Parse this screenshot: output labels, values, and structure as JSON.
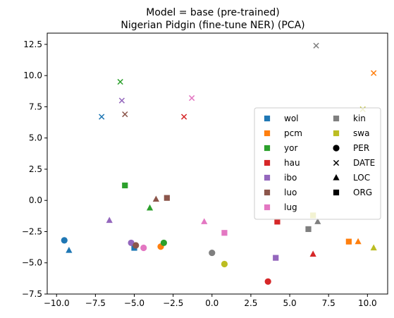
{
  "chart_data": {
    "type": "scatter",
    "title_line1": "Model = base (pre-trained)",
    "title_line2": "Nigerian Pidgin (fine-tune NER) (PCA)",
    "xlabel": "",
    "ylabel": "",
    "xlim": [
      -10.6,
      11.3
    ],
    "ylim": [
      -7.5,
      13.4
    ],
    "xticks": [
      -10.0,
      -7.5,
      -5.0,
      -2.5,
      0.0,
      2.5,
      5.0,
      7.5,
      10.0
    ],
    "yticks": [
      -7.5,
      -5.0,
      -2.5,
      0.0,
      2.5,
      5.0,
      7.5,
      10.0,
      12.5
    ],
    "xtick_labels": [
      "−10.0",
      "−7.5",
      "−5.0",
      "−2.5",
      "0.0",
      "2.5",
      "5.0",
      "7.5",
      "10.0"
    ],
    "ytick_labels": [
      "−7.5",
      "−5.0",
      "−2.5",
      "0.0",
      "2.5",
      "5.0",
      "7.5",
      "10.0",
      "12.5"
    ],
    "grid": false,
    "legend_placement": "center-right",
    "languages": [
      {
        "name": "wol",
        "color": "#1f77b4"
      },
      {
        "name": "pcm",
        "color": "#ff7f0e"
      },
      {
        "name": "yor",
        "color": "#2ca02c"
      },
      {
        "name": "hau",
        "color": "#d62728"
      },
      {
        "name": "ibo",
        "color": "#9467bd"
      },
      {
        "name": "luo",
        "color": "#8c564b"
      },
      {
        "name": "lug",
        "color": "#e377c2"
      },
      {
        "name": "kin",
        "color": "#7f7f7f"
      },
      {
        "name": "swa",
        "color": "#bcbd22"
      }
    ],
    "entity_types": [
      {
        "name": "PER",
        "marker": "circle"
      },
      {
        "name": "DATE",
        "marker": "x"
      },
      {
        "name": "LOC",
        "marker": "triangle"
      },
      {
        "name": "ORG",
        "marker": "square"
      }
    ],
    "points": [
      {
        "lang": "wol",
        "type": "DATE",
        "x": -7.1,
        "y": 6.7
      },
      {
        "lang": "wol",
        "type": "PER",
        "x": -9.5,
        "y": -3.2
      },
      {
        "lang": "wol",
        "type": "LOC",
        "x": -9.2,
        "y": -4.0
      },
      {
        "lang": "wol",
        "type": "ORG",
        "x": -5.0,
        "y": -3.8
      },
      {
        "lang": "pcm",
        "type": "DATE",
        "x": 10.4,
        "y": 10.2
      },
      {
        "lang": "pcm",
        "type": "PER",
        "x": -3.3,
        "y": -3.7
      },
      {
        "lang": "pcm",
        "type": "ORG",
        "x": 8.8,
        "y": -3.3
      },
      {
        "lang": "pcm",
        "type": "LOC",
        "x": 9.4,
        "y": -3.3
      },
      {
        "lang": "yor",
        "type": "DATE",
        "x": -5.9,
        "y": 9.5
      },
      {
        "lang": "yor",
        "type": "ORG",
        "x": -5.6,
        "y": 1.2
      },
      {
        "lang": "yor",
        "type": "LOC",
        "x": -4.0,
        "y": -0.6
      },
      {
        "lang": "yor",
        "type": "PER",
        "x": -3.1,
        "y": -3.4
      },
      {
        "lang": "hau",
        "type": "DATE",
        "x": -1.8,
        "y": 6.7
      },
      {
        "lang": "hau",
        "type": "ORG",
        "x": 4.2,
        "y": -1.7
      },
      {
        "lang": "hau",
        "type": "PER",
        "x": 3.6,
        "y": -6.5
      },
      {
        "lang": "hau",
        "type": "LOC",
        "x": 6.5,
        "y": -4.3
      },
      {
        "lang": "ibo",
        "type": "DATE",
        "x": -5.8,
        "y": 8.0
      },
      {
        "lang": "ibo",
        "type": "LOC",
        "x": -6.6,
        "y": -1.6
      },
      {
        "lang": "ibo",
        "type": "PER",
        "x": -5.2,
        "y": -3.4
      },
      {
        "lang": "ibo",
        "type": "ORG",
        "x": 4.1,
        "y": -4.6
      },
      {
        "lang": "luo",
        "type": "DATE",
        "x": -5.6,
        "y": 6.9
      },
      {
        "lang": "luo",
        "type": "LOC",
        "x": -3.6,
        "y": 0.1
      },
      {
        "lang": "luo",
        "type": "ORG",
        "x": -2.9,
        "y": 0.2
      },
      {
        "lang": "luo",
        "type": "PER",
        "x": -4.9,
        "y": -3.6
      },
      {
        "lang": "lug",
        "type": "DATE",
        "x": -1.3,
        "y": 8.2
      },
      {
        "lang": "lug",
        "type": "LOC",
        "x": -0.5,
        "y": -1.7
      },
      {
        "lang": "lug",
        "type": "ORG",
        "x": 0.8,
        "y": -2.6
      },
      {
        "lang": "lug",
        "type": "PER",
        "x": -4.4,
        "y": -3.8
      },
      {
        "lang": "kin",
        "type": "DATE",
        "x": 6.7,
        "y": 12.4
      },
      {
        "lang": "kin",
        "type": "ORG",
        "x": 6.2,
        "y": -2.3
      },
      {
        "lang": "kin",
        "type": "LOC",
        "x": 6.8,
        "y": -1.7
      },
      {
        "lang": "kin",
        "type": "PER",
        "x": 0.0,
        "y": -4.2
      },
      {
        "lang": "swa",
        "type": "DATE",
        "x": 9.7,
        "y": 7.3
      },
      {
        "lang": "swa",
        "type": "ORG",
        "x": 6.5,
        "y": -1.2
      },
      {
        "lang": "swa",
        "type": "PER",
        "x": 0.8,
        "y": -5.1
      },
      {
        "lang": "swa",
        "type": "LOC",
        "x": 10.4,
        "y": -3.8
      }
    ]
  }
}
